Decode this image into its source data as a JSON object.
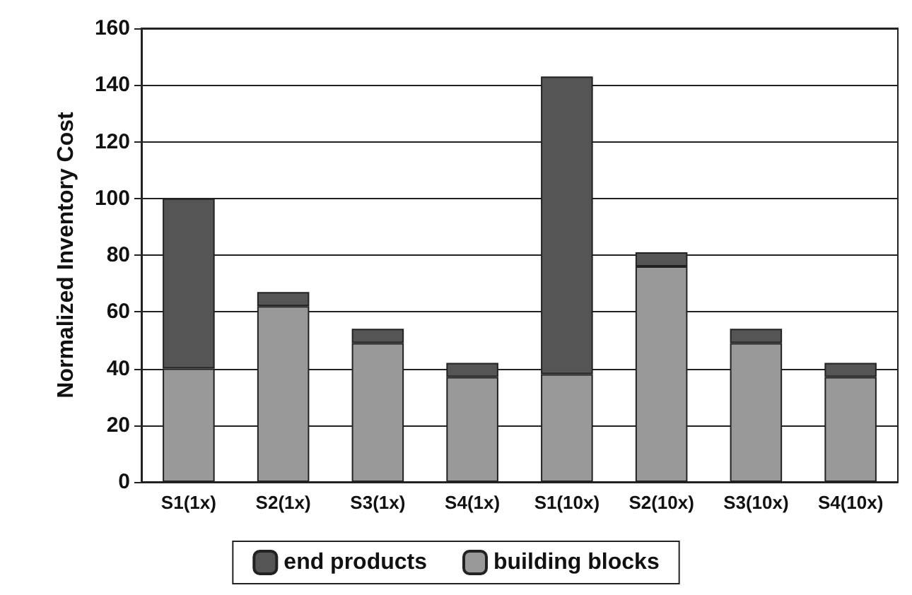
{
  "chart_data": {
    "type": "bar",
    "stacked": true,
    "ylabel": "Normalized Inventory Cost",
    "categories": [
      "S1(1x)",
      "S2(1x)",
      "S3(1x)",
      "S4(1x)",
      "S1(10x)",
      "S2(10x)",
      "S3(10x)",
      "S4(10x)"
    ],
    "series": [
      {
        "name": "building blocks",
        "color": "#999999",
        "values": [
          40,
          62,
          49,
          37,
          38,
          76,
          49,
          37
        ]
      },
      {
        "name": "end products",
        "color": "#555555",
        "values": [
          60,
          5,
          5,
          5,
          105,
          5,
          5,
          5
        ]
      }
    ],
    "ylim": [
      0,
      160
    ],
    "yticks": [
      0,
      20,
      40,
      60,
      80,
      100,
      120,
      140,
      160
    ],
    "grid": "y",
    "legend": "bottom"
  }
}
